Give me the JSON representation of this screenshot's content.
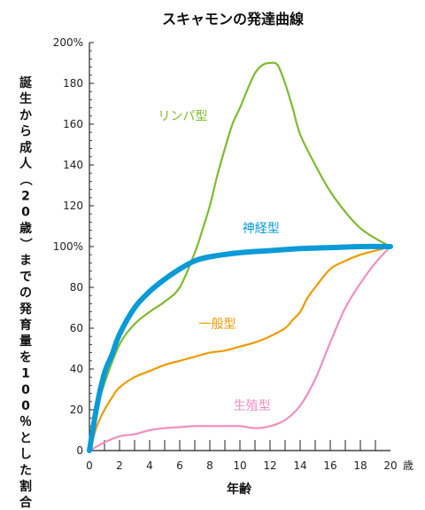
{
  "chart_data": {
    "type": "line",
    "title": "スキャモンの発達曲線",
    "xlabel": "年齢",
    "x_unit": "歳",
    "ylabel": "誕生から成人（20歳）までの発育量を100％とした割合",
    "xlim": [
      0,
      20
    ],
    "ylim": [
      0,
      200
    ],
    "x_ticks": [
      "0",
      "2",
      "4",
      "6",
      "8",
      "10",
      "12",
      "14",
      "16",
      "18",
      "20"
    ],
    "y_ticks": [
      "0",
      "20",
      "40",
      "60",
      "80",
      "100%",
      "120",
      "140",
      "160",
      "180",
      "200%"
    ],
    "grid": false,
    "series": [
      {
        "name": "リンパ型",
        "color": "#7dbb2e",
        "x": [
          0,
          0.5,
          1,
          2,
          3,
          4,
          5,
          6,
          7,
          7.5,
          8,
          8.5,
          9,
          9.5,
          10,
          10.5,
          11,
          11.5,
          12,
          12.5,
          13,
          13.5,
          14,
          15,
          16,
          17,
          18,
          19,
          20
        ],
        "y": [
          0,
          20,
          33,
          52,
          62,
          68,
          73,
          80,
          97,
          108,
          120,
          135,
          148,
          160,
          168,
          177,
          185,
          189,
          190,
          189,
          180,
          168,
          155,
          140,
          127,
          117,
          109,
          104,
          100
        ]
      },
      {
        "name": "神経型",
        "color": "#0a9ad8",
        "x": [
          0,
          0.5,
          1,
          1.5,
          2,
          3,
          4,
          5,
          6,
          7,
          8,
          10,
          12,
          14,
          16,
          18,
          20
        ],
        "y": [
          0,
          22,
          38,
          47,
          57,
          70,
          78,
          84,
          89,
          93,
          95,
          97,
          98,
          99,
          99.5,
          100,
          100
        ]
      },
      {
        "name": "一般型",
        "color": "#ef9a00",
        "x": [
          0,
          0.5,
          1,
          1.5,
          2,
          3,
          4,
          5,
          6,
          7,
          8,
          9,
          10,
          11,
          12,
          13,
          13.5,
          14,
          14.5,
          15,
          16,
          17,
          18,
          19,
          20
        ],
        "y": [
          0,
          12,
          20,
          26,
          31,
          36,
          39,
          42,
          44,
          46,
          48,
          49,
          51,
          53,
          56,
          60,
          64,
          68,
          75,
          80,
          89,
          93,
          96,
          98,
          100
        ]
      },
      {
        "name": "生殖型",
        "color": "#f08fc0",
        "x": [
          0,
          1,
          2,
          3,
          4,
          5,
          6,
          7,
          8,
          9,
          10,
          11,
          12,
          13,
          14,
          15,
          16,
          17,
          18,
          19,
          20
        ],
        "y": [
          0,
          4,
          7,
          8,
          10,
          11,
          11.5,
          12,
          12,
          12,
          12,
          11,
          12,
          15,
          22,
          35,
          53,
          70,
          82,
          92,
          100
        ]
      }
    ],
    "series_label_positions": [
      {
        "name": "リンパ型",
        "x": 6.2,
        "y": 162
      },
      {
        "name": "神経型",
        "x": 11.4,
        "y": 107
      },
      {
        "name": "一般型",
        "x": 8.5,
        "y": 60
      },
      {
        "name": "生殖型",
        "x": 10.8,
        "y": 20
      }
    ],
    "axis_color": "#222222"
  }
}
